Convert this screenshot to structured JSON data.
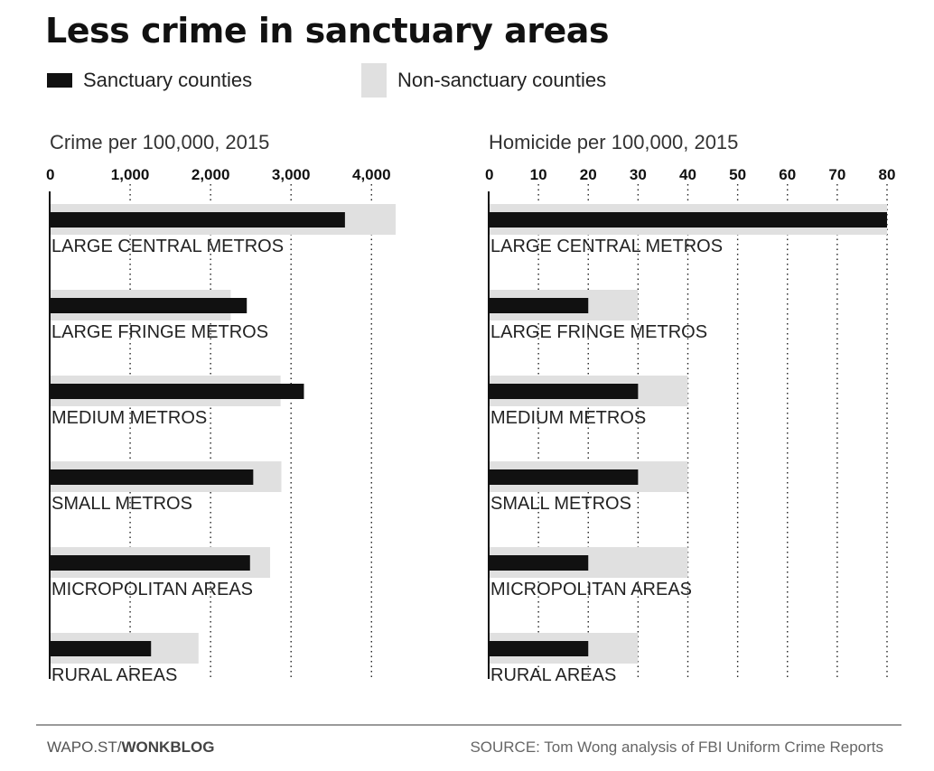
{
  "title": "Less crime in sanctuary areas",
  "legend": {
    "sanctuary": "Sanctuary counties",
    "non_sanctuary": "Non-sanctuary counties"
  },
  "colors": {
    "sanctuary": "#111111",
    "non_sanctuary": "#e0e0e0",
    "axis": "#111111",
    "grid": "#222222",
    "label": "#222222"
  },
  "chart_data": [
    {
      "type": "bar",
      "orientation": "horizontal",
      "title": "Crime per 100,000, 2015",
      "xlim": [
        0,
        4300
      ],
      "ticks": [
        0,
        1000,
        2000,
        3000,
        4000
      ],
      "tick_labels": [
        "0",
        "1,000",
        "2,000",
        "3,000",
        "4,000"
      ],
      "grid": "dotted vertical",
      "categories": [
        "LARGE CENTRAL METROS",
        "LARGE FRINGE METROS",
        "MEDIUM METROS",
        "SMALL METROS",
        "MICROPOLITAN AREAS",
        "RURAL AREAS"
      ],
      "series": [
        {
          "name": "Non-sanctuary counties",
          "values": [
            4300,
            2250,
            2870,
            2880,
            2740,
            1850
          ]
        },
        {
          "name": "Sanctuary counties",
          "values": [
            3670,
            2450,
            3160,
            2530,
            2490,
            1260
          ]
        }
      ]
    },
    {
      "type": "bar",
      "orientation": "horizontal",
      "title": "Homicide per 100,000, 2015",
      "xlim": [
        0,
        80
      ],
      "ticks": [
        0,
        10,
        20,
        30,
        40,
        50,
        60,
        70,
        80
      ],
      "tick_labels": [
        "0",
        "10",
        "20",
        "30",
        "40",
        "50",
        "60",
        "70",
        "80"
      ],
      "grid": "dotted vertical",
      "categories": [
        "LARGE CENTRAL METROS",
        "LARGE FRINGE METROS",
        "MEDIUM METROS",
        "SMALL METROS",
        "MICROPOLITAN AREAS",
        "RURAL AREAS"
      ],
      "series": [
        {
          "name": "Non-sanctuary counties",
          "values": [
            80,
            30,
            40,
            40,
            40,
            30
          ]
        },
        {
          "name": "Sanctuary counties",
          "values": [
            80,
            20,
            30,
            30,
            20,
            20
          ]
        }
      ]
    }
  ],
  "footer": {
    "credit_prefix": "WAPO.ST/",
    "credit_bold": "WONKBLOG",
    "source": "SOURCE: Tom Wong analysis of FBI Uniform Crime Reports"
  }
}
